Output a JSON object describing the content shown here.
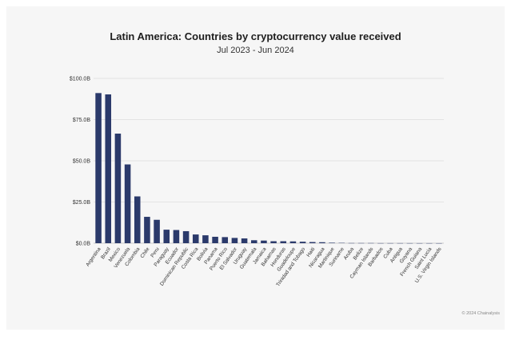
{
  "chart_data": {
    "type": "bar",
    "title": "Latin America: Countries by cryptocurrency value received",
    "subtitle": "Jul 2023 - Jun 2024",
    "xlabel": "",
    "ylabel": "",
    "ylim": [
      0,
      100
    ],
    "yticks": [
      0,
      25,
      50,
      75,
      100
    ],
    "ytick_labels": [
      "$0.0B",
      "$25.0B",
      "$50.0B",
      "$75.0B",
      "$100.0B"
    ],
    "grid": true,
    "bar_color": "#2b3a6b",
    "categories": [
      "Argentina",
      "Brazil",
      "Mexico",
      "Venezuela",
      "Colombia",
      "Chile",
      "Peru",
      "Paraguay",
      "Ecuador",
      "Dominican Republic",
      "Costa Rica",
      "Bolivia",
      "Panama",
      "Puerto Rico",
      "El Salvador",
      "Uruguay",
      "Guatemala",
      "Jamaica",
      "Bahamas",
      "Honduras",
      "Guadeloupe",
      "Trinidad and Tobago",
      "Haiti",
      "Nicaragua",
      "Martinique",
      "Suriname",
      "Aruba",
      "Belize",
      "Cayman Islands",
      "Barbados",
      "Cuba",
      "Antigua",
      "Guyana",
      "French Guiana",
      "Saint Lucia",
      "U.S. Virgin Islands"
    ],
    "values": [
      91.1,
      90.3,
      66.5,
      47.8,
      28.4,
      16.0,
      14.2,
      8.2,
      8.0,
      7.3,
      5.3,
      4.8,
      3.9,
      3.7,
      3.2,
      2.9,
      1.8,
      1.6,
      1.2,
      1.2,
      1.1,
      0.9,
      0.7,
      0.6,
      0.3,
      0.2,
      0.1,
      0.1,
      0.1,
      0.05,
      0.05,
      0.05,
      0.04,
      0.03,
      0.03,
      0.02
    ]
  },
  "footer": "© 2024 Chainalysis"
}
